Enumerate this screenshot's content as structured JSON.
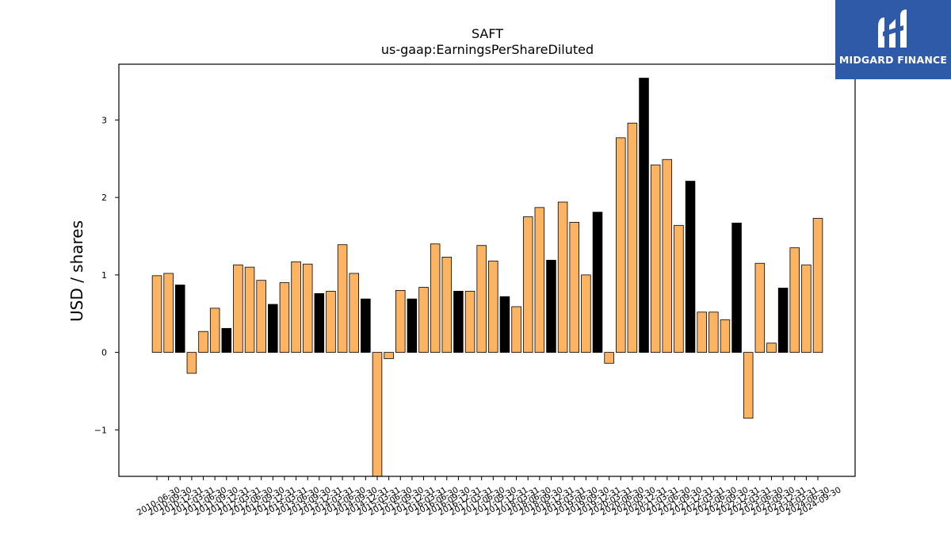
{
  "logo": {
    "text": "MIDGARD FINANCE"
  },
  "colors": {
    "positive_fill": "#fdb462",
    "highlight_fill": "#000000",
    "edge": "#000000",
    "logo_bg": "#2f5aa8"
  },
  "chart_data": {
    "type": "bar",
    "title": "SAFT",
    "subtitle": "us-gaap:EarningsPerShareDiluted",
    "ylabel": "USD / shares",
    "xlabel": "",
    "ylim": [
      -1.6,
      3.72
    ],
    "yticks": [
      -1,
      0,
      1,
      2,
      3
    ],
    "grid": false,
    "categories": [
      "2010-06-30",
      "2010-09-30",
      "2010-12-31",
      "2011-03-31",
      "2011-06-30",
      "2011-09-30",
      "2011-12-31",
      "2012-03-31",
      "2012-06-30",
      "2012-09-30",
      "2012-12-31",
      "2013-03-31",
      "2013-06-30",
      "2013-09-30",
      "2013-12-31",
      "2014-03-31",
      "2014-06-30",
      "2014-09-30",
      "2014-12-31",
      "2015-03-31",
      "2015-06-30",
      "2015-09-30",
      "2015-12-31",
      "2016-03-31",
      "2016-06-30",
      "2016-09-30",
      "2016-12-31",
      "2017-03-31",
      "2017-06-30",
      "2017-09-30",
      "2017-12-31",
      "2018-03-31",
      "2018-06-30",
      "2018-09-30",
      "2018-12-31",
      "2019-03-31",
      "2019-06-30",
      "2019-09-30",
      "2019-12-31",
      "2020-03-31",
      "2020-06-30",
      "2020-09-30",
      "2020-12-31",
      "2021-03-31",
      "2021-06-30",
      "2021-09-30",
      "2021-12-31",
      "2022-03-31",
      "2022-06-30",
      "2022-09-30",
      "2022-12-31",
      "2023-03-31",
      "2023-06-30",
      "2023-09-30",
      "2023-12-31",
      "2024-03-31",
      "2024-06-30",
      "2024-09-30"
    ],
    "values": [
      0.99,
      1.02,
      0.87,
      -0.27,
      0.27,
      0.57,
      0.31,
      1.13,
      1.1,
      0.93,
      0.62,
      0.9,
      1.17,
      1.14,
      0.76,
      0.79,
      1.39,
      1.02,
      0.69,
      -1.6,
      -0.08,
      0.8,
      0.69,
      0.84,
      1.4,
      1.23,
      0.79,
      0.79,
      1.38,
      1.18,
      0.72,
      0.59,
      1.75,
      1.87,
      1.19,
      1.94,
      1.68,
      1.0,
      1.81,
      -0.14,
      2.77,
      2.96,
      3.54,
      2.42,
      2.49,
      1.64,
      2.21,
      0.52,
      0.52,
      0.42,
      1.67,
      -0.85,
      1.15,
      0.12,
      0.83,
      1.35,
      1.13,
      1.73
    ],
    "highlight": [
      false,
      false,
      true,
      false,
      false,
      false,
      true,
      false,
      false,
      false,
      true,
      false,
      false,
      false,
      true,
      false,
      false,
      false,
      true,
      false,
      false,
      false,
      true,
      false,
      false,
      false,
      true,
      false,
      false,
      false,
      true,
      false,
      false,
      false,
      true,
      false,
      false,
      false,
      true,
      false,
      false,
      false,
      true,
      false,
      false,
      false,
      true,
      false,
      false,
      false,
      true,
      false,
      false,
      false,
      true,
      false,
      false,
      false
    ]
  }
}
